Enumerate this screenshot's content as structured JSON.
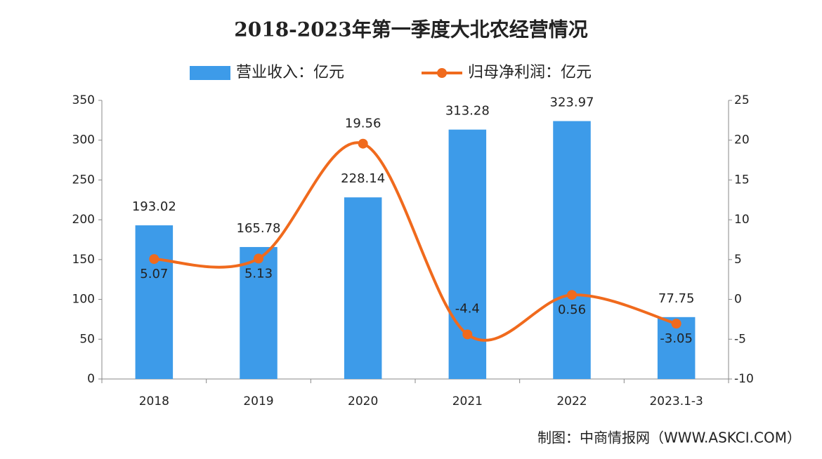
{
  "chart_data": {
    "type": "bar-line",
    "title": "2018-2023年第一季度大北农经营情况",
    "categories": [
      "2018",
      "2019",
      "2020",
      "2021",
      "2022",
      "2023.1-3"
    ],
    "series": [
      {
        "name": "营业收入：亿元",
        "type": "bar",
        "color": "#3d9be9",
        "values": [
          193.02,
          165.78,
          228.14,
          313.28,
          323.97,
          77.75
        ]
      },
      {
        "name": "归母净利润：亿元",
        "type": "line",
        "axis": "y2",
        "color": "#f06a1d",
        "values": [
          5.07,
          5.13,
          19.56,
          -4.4,
          0.56,
          -3.05
        ]
      }
    ],
    "ylim": [
      0,
      350
    ],
    "yticks": [
      0,
      50,
      100,
      150,
      200,
      250,
      300,
      350
    ],
    "y2lim": [
      -10,
      25
    ],
    "y2ticks": [
      -10,
      -5,
      0,
      5,
      10,
      15,
      20,
      25
    ],
    "source": "制图：中商情报网（WWW.ASKCI.COM）"
  }
}
